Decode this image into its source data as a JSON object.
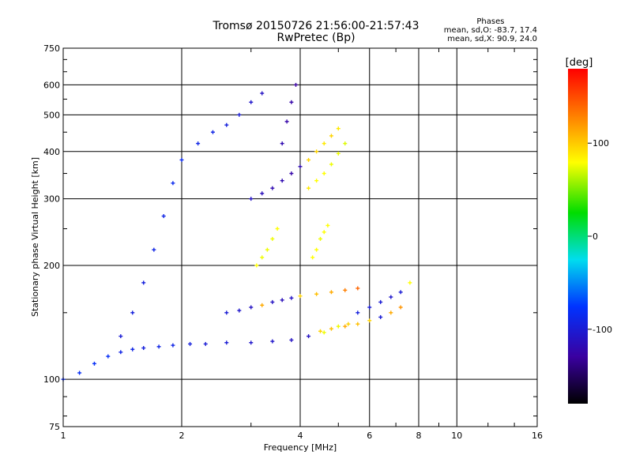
{
  "chart_data": {
    "type": "scatter",
    "title": "Tromsø 20150726 21:56:00-21:57:43",
    "subtitle": "RwPretec (Bp)",
    "xlabel": "Frequency [MHz]",
    "ylabel": "Stationary phase Virtual Height [km]",
    "x_scale": "log",
    "y_scale": "log",
    "xlim": [
      1,
      16
    ],
    "ylim": [
      75,
      750
    ],
    "x_ticks": [
      1,
      2,
      4,
      6,
      8,
      10,
      16
    ],
    "y_ticks": [
      75,
      100,
      200,
      300,
      400,
      500,
      600,
      750
    ],
    "grid": true,
    "stats": {
      "header": "Phases",
      "line_o": "mean, sd,O: -83.7, 17.4",
      "line_x": "mean, sd,X: 90.9, 24.0"
    },
    "colorbar": {
      "label": "[deg]",
      "range": [
        -180,
        180
      ],
      "ticks": [
        100,
        0,
        -100
      ]
    },
    "series": [
      {
        "mode": "O",
        "traces": [
          {
            "x": [
              1.0,
              1.1,
              1.2,
              1.3,
              1.4,
              1.5,
              1.6,
              1.75,
              1.9,
              2.1,
              2.3,
              2.6,
              3.0,
              3.4,
              3.8,
              4.2,
              4.6,
              5.0,
              5.3
            ],
            "y": [
              100,
              104,
              110,
              115,
              118,
              120,
              121,
              122,
              123,
              124,
              124,
              125,
              125,
              126,
              127,
              130,
              133,
              138,
              140
            ],
            "phase": [
              -85,
              -80,
              -80,
              -80,
              -90,
              -90,
              -95,
              -90,
              -90,
              -95,
              -100,
              -100,
              -105,
              -105,
              -110,
              -110,
              95,
              95,
              110
            ]
          },
          {
            "x": [
              1.4,
              1.5,
              1.6,
              1.7,
              1.8,
              1.9,
              2.0,
              2.2,
              2.4,
              2.6,
              2.8,
              3.0,
              3.2
            ],
            "y": [
              130,
              150,
              180,
              220,
              270,
              330,
              380,
              420,
              450,
              470,
              500,
              540,
              570
            ],
            "phase": [
              -100,
              -95,
              -95,
              -90,
              -90,
              -85,
              -85,
              -90,
              -90,
              -95,
              -100,
              -105,
              -110
            ]
          },
          {
            "x": [
              3.0,
              3.2,
              3.4,
              3.6,
              3.8,
              4.0,
              4.2,
              4.4,
              4.6,
              4.8,
              5.0
            ],
            "y": [
              300,
              310,
              320,
              335,
              350,
              365,
              380,
              400,
              420,
              440,
              460
            ],
            "phase": [
              -110,
              -115,
              -120,
              -120,
              -125,
              -120,
              110,
              110,
              105,
              110,
              105
            ]
          },
          {
            "x": [
              3.6,
              3.7,
              3.8,
              3.9
            ],
            "y": [
              420,
              480,
              540,
              600
            ],
            "phase": [
              -120,
              -125,
              -125,
              -130
            ]
          },
          {
            "x": [
              2.6,
              2.8,
              3.0,
              3.2,
              3.4,
              3.6,
              3.8,
              4.0,
              4.4,
              4.8,
              5.2,
              5.6
            ],
            "y": [
              150,
              152,
              155,
              157,
              160,
              162,
              164,
              166,
              168,
              170,
              172,
              174
            ],
            "phase": [
              -100,
              -105,
              -110,
              120,
              -110,
              -115,
              -110,
              110,
              115,
              120,
              130,
              140
            ]
          },
          {
            "x": [
              4.5,
              4.8,
              5.2,
              5.6,
              6.0,
              6.4,
              6.8,
              7.2
            ],
            "y": [
              134,
              136,
              138,
              140,
              143,
              146,
              150,
              155
            ],
            "phase": [
              110,
              115,
              120,
              115,
              110,
              -100,
              120,
              125
            ]
          },
          {
            "x": [
              5.6,
              6.0,
              6.4,
              6.8,
              7.2,
              7.6
            ],
            "y": [
              150,
              155,
              160,
              165,
              170,
              180
            ],
            "phase": [
              -95,
              -100,
              -100,
              -105,
              -100,
              100
            ]
          }
        ]
      },
      {
        "mode": "X",
        "traces": [
          {
            "x": [
              4.2,
              4.4,
              4.6,
              4.8,
              5.0,
              5.2
            ],
            "y": [
              320,
              335,
              350,
              370,
              395,
              420
            ],
            "phase": [
              105,
              100,
              100,
              95,
              95,
              90
            ]
          },
          {
            "x": [
              3.1,
              3.2,
              3.3,
              3.4,
              3.5
            ],
            "y": [
              200,
              210,
              220,
              235,
              250
            ],
            "phase": [
              100,
              95,
              95,
              95,
              100
            ]
          },
          {
            "x": [
              4.3,
              4.4,
              4.5,
              4.6,
              4.7
            ],
            "y": [
              210,
              220,
              235,
              245,
              255
            ],
            "phase": [
              100,
              100,
              95,
              100,
              100
            ]
          }
        ]
      }
    ]
  }
}
